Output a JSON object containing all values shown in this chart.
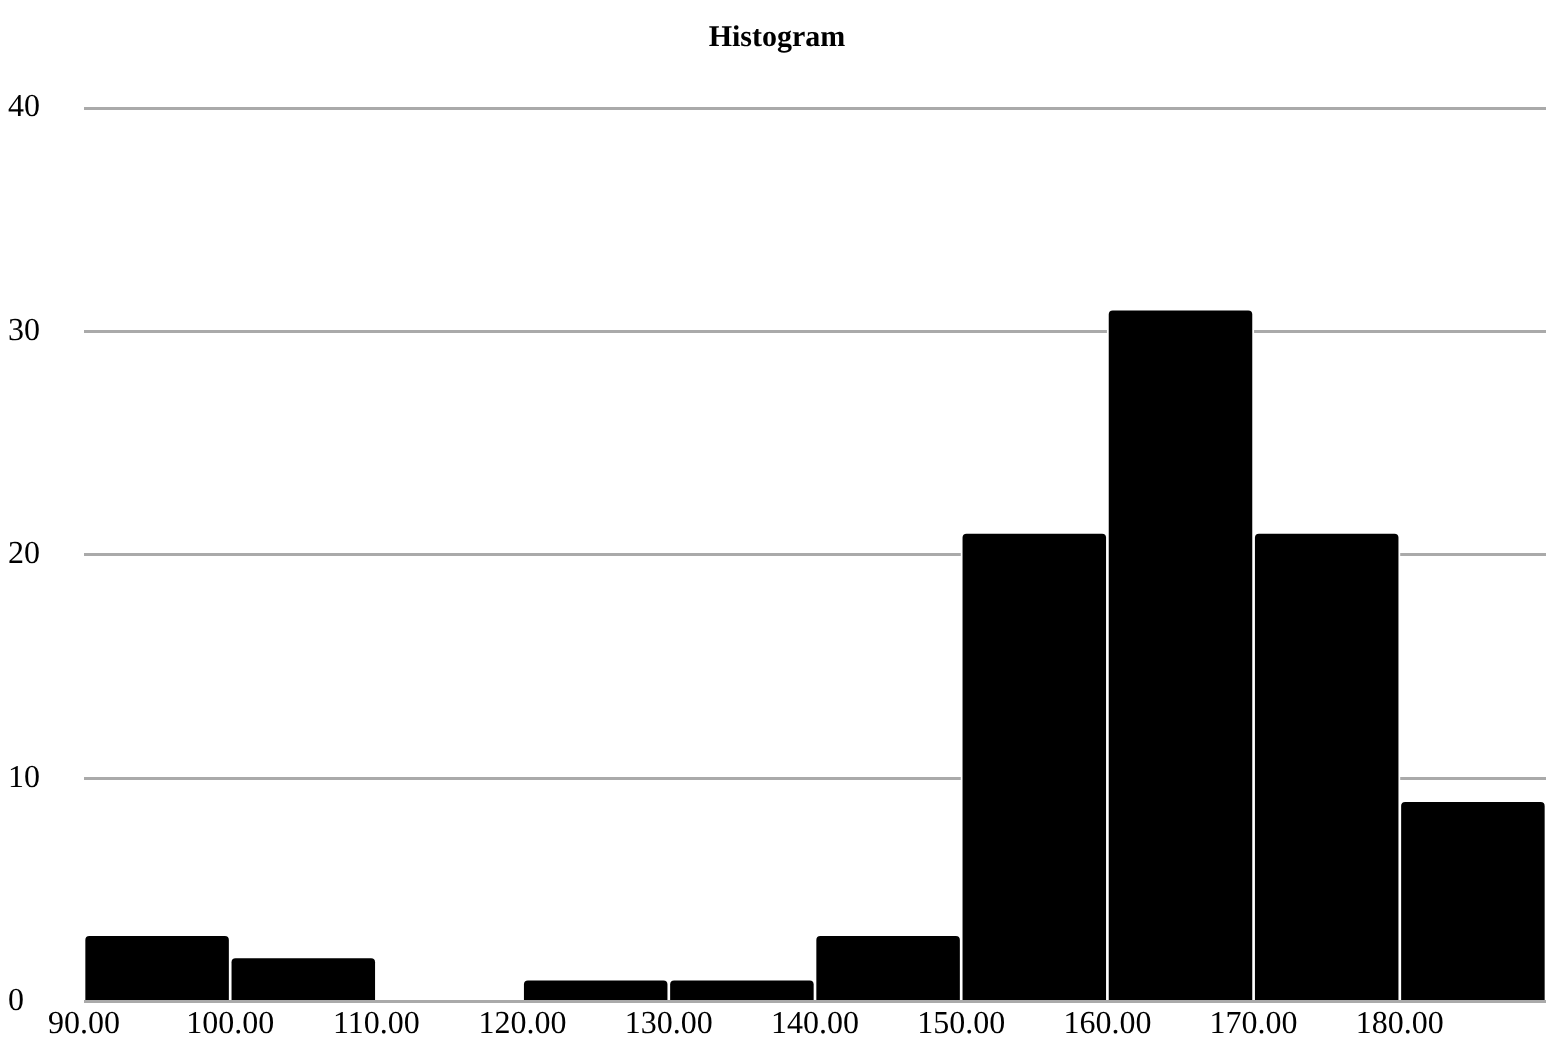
{
  "chart_data": {
    "type": "histogram",
    "title": "Histogram",
    "bins": [
      90,
      100,
      110,
      120,
      130,
      140,
      150,
      160,
      170,
      180,
      190
    ],
    "values": [
      3,
      2,
      0,
      1,
      1,
      3,
      21,
      31,
      21,
      9
    ],
    "color": "#000000",
    "xlim": [
      90,
      190
    ],
    "xticks": [
      {
        "value": 90,
        "label": "90.00"
      },
      {
        "value": 100,
        "label": "100.00"
      },
      {
        "value": 110,
        "label": "110.00"
      },
      {
        "value": 120,
        "label": "120.00"
      },
      {
        "value": 130,
        "label": "130.00"
      },
      {
        "value": 140,
        "label": "140.00"
      },
      {
        "value": 150,
        "label": "150.00"
      },
      {
        "value": 160,
        "label": "160.00"
      },
      {
        "value": 170,
        "label": "170.00"
      },
      {
        "value": 180,
        "label": "180.00"
      }
    ],
    "ylim": [
      0,
      40
    ],
    "yticks": [
      0,
      10,
      20,
      30,
      40
    ],
    "grid": "y",
    "legend": false
  }
}
